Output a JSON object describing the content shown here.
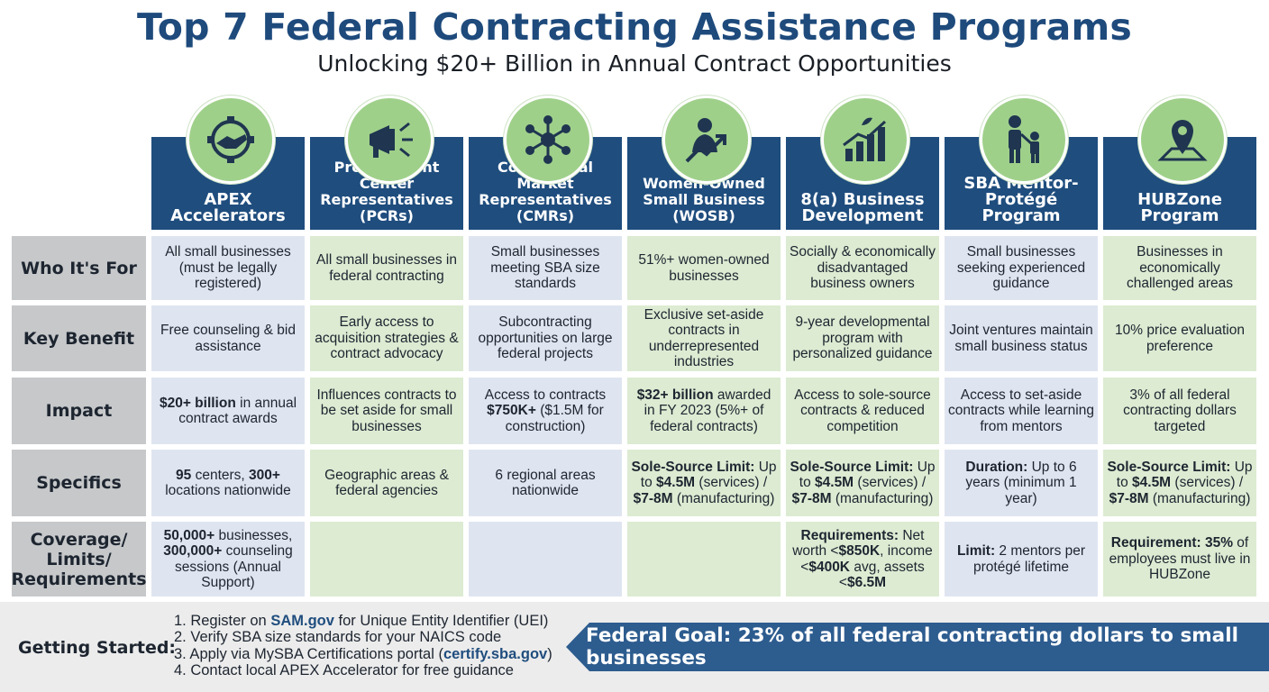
{
  "header": {
    "title": "Top 7 Federal Contracting Assistance Programs",
    "subtitle": "Unlocking $20+ Billion in Annual Contract Opportunities"
  },
  "programs": [
    {
      "name": "APEX Accelerators",
      "icon": "handshake-gear-icon"
    },
    {
      "name": "Procurement Center Representatives (PCRs)",
      "icon": "megaphone-icon"
    },
    {
      "name": "Commercial Market Representatives (CMRs)",
      "icon": "network-icon"
    },
    {
      "name": "Women-Owned Small Business (WOSB)",
      "icon": "woman-growth-icon"
    },
    {
      "name": "8(a) Business Development",
      "icon": "growth-chart-icon"
    },
    {
      "name": "SBA Mentor-Protégé Program",
      "icon": "mentor-child-icon"
    },
    {
      "name": "HUBZone Program",
      "icon": "map-pin-icon"
    }
  ],
  "rows": [
    {
      "label": "Who It's For",
      "cells": [
        {
          "text": "All small businesses (must be legally registered)"
        },
        {
          "text": "All small businesses in federal contracting"
        },
        {
          "text": "Small businesses meeting SBA size standards"
        },
        {
          "text": "51%+ women-owned businesses"
        },
        {
          "text": "Socially & economically disadvantaged business owners"
        },
        {
          "text": "Small businesses seeking experienced guidance"
        },
        {
          "text": "Businesses in economically challenged areas"
        }
      ]
    },
    {
      "label": "Key Benefit",
      "cells": [
        {
          "text": "Free counseling & bid assistance"
        },
        {
          "text": "Early access to acquisition strategies & contract advocacy"
        },
        {
          "text": "Subcontracting opportunities on large federal projects"
        },
        {
          "text": "Exclusive set-aside contracts in underrepresented industries"
        },
        {
          "text": "9-year developmental program with personalized guidance"
        },
        {
          "text": "Joint ventures maintain small business status"
        },
        {
          "text": "10% price evaluation preference"
        }
      ]
    },
    {
      "label": "Impact",
      "cells": [
        {
          "bold": "$20+ billion",
          "text": " in annual contract awards"
        },
        {
          "text": "Influences contracts to be set aside for small businesses"
        },
        {
          "text": "Access to contracts ",
          "bold": "$750K+",
          "text2": " ($1.5M for construction)"
        },
        {
          "bold": "$32+ billion",
          "text": " awarded in FY 2023 (5%+ of federal contracts)"
        },
        {
          "text": "Access to sole-source contracts & reduced competition"
        },
        {
          "text": "Access to set-aside contracts while learning from mentors"
        },
        {
          "text": "3% of all federal contracting dollars targeted"
        }
      ]
    },
    {
      "label": "Specifics",
      "cells": [
        {
          "bold": "95",
          "text": " centers, ",
          "bold2": "300+",
          "text2": " locations nationwide"
        },
        {
          "text": "Geographic areas & federal agencies"
        },
        {
          "text": "6 regional areas nationwide"
        },
        {
          "bold": "Sole-Source Limit:",
          "text": " Up to ",
          "bold2": "$4.5M",
          "text2": " (services) / ",
          "bold3": "$7-8M",
          "text3": " (manufacturing)"
        },
        {
          "bold": "Sole-Source Limit:",
          "text": " Up to ",
          "bold2": "$4.5M",
          "text2": " (services) / ",
          "bold3": "$7-8M",
          "text3": " (manufacturing)"
        },
        {
          "bold": "Duration:",
          "text": " Up to 6 years (minimum 1 year)"
        },
        {
          "bold": "Sole-Source Limit:",
          "text": " Up to ",
          "bold2": "$4.5M",
          "text2": " (services) / ",
          "bold3": "$7-8M",
          "text3": " (manufacturing)"
        }
      ]
    },
    {
      "label": "Coverage/ Limits/ Requirements",
      "cells": [
        {
          "bold": "50,000+",
          "text": " businesses, ",
          "bold2": "300,000+",
          "text2": " counseling sessions (Annual Support)"
        },
        {
          "text": ""
        },
        {
          "text": ""
        },
        {
          "text": ""
        },
        {
          "bold": "Requirements:",
          "text": " Net worth <",
          "bold2": "$850K",
          "text2": ", income <",
          "bold3": "$400K",
          "text3": " avg, assets <",
          "bold4": "$6.5M"
        },
        {
          "bold": "Limit:",
          "text": " 2 mentors per protégé lifetime"
        },
        {
          "bold": "Requirement: 35%",
          "text": " of employees must live in HUBZone"
        }
      ]
    }
  ],
  "footer": {
    "getting_started_label": "Getting Started:",
    "steps": [
      {
        "prefix": "1. Register on ",
        "link": "SAM.gov",
        "suffix": " for Unique Entity Identifier (UEI)"
      },
      {
        "prefix": "2. Verify SBA size standards for your NAICS code",
        "link": "",
        "suffix": ""
      },
      {
        "prefix": "3. Apply via MySBA Certifications portal (",
        "link": "certify.sba.gov",
        "suffix": ")"
      },
      {
        "prefix": "4. Contact local APEX Accelerator for free guidance",
        "link": "",
        "suffix": ""
      }
    ],
    "goal_text": "Federal Goal: 23% of all federal contracting dollars to small businesses"
  },
  "colors": {
    "title": "#1e4a7c",
    "header_navy": "#1f4d7e",
    "icon_green": "#9fd08a",
    "cell_blue": "#dfe5f0",
    "cell_green": "#dcebd2",
    "row_label_gray": "#c6c8ca",
    "banner_blue": "#2d5c8f"
  }
}
